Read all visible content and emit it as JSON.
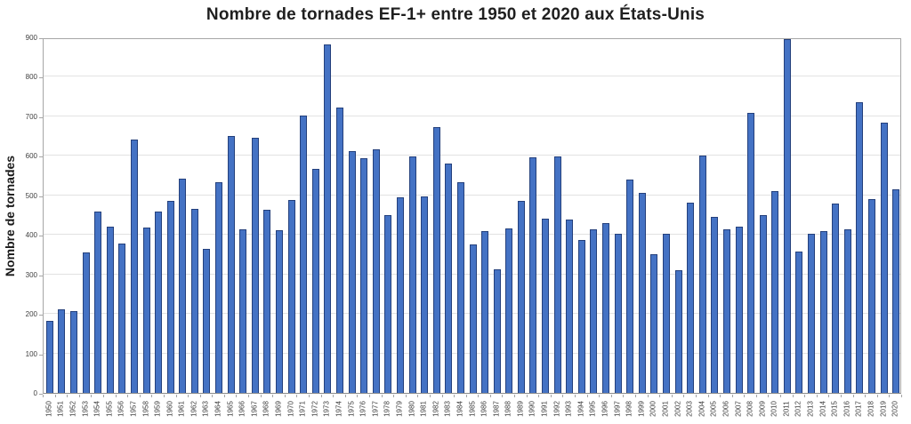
{
  "chart_data": {
    "type": "bar",
    "title": "Nombre de tornades EF-1+ entre 1950 et 2020 aux États-Unis",
    "xlabel": "",
    "ylabel": "Nombre de tornades",
    "ylim": [
      0,
      900
    ],
    "ytick_step": 100,
    "grid": true,
    "legend": "none",
    "bar_color": "#4472c4",
    "bar_border_color": "#24407c",
    "categories": [
      "1950",
      "1951",
      "1952",
      "1953",
      "1954",
      "1955",
      "1956",
      "1957",
      "1958",
      "1959",
      "1960",
      "1961",
      "1962",
      "1963",
      "1964",
      "1965",
      "1966",
      "1967",
      "1968",
      "1969",
      "1970",
      "1971",
      "1972",
      "1973",
      "1974",
      "1975",
      "1976",
      "1977",
      "1978",
      "1979",
      "1980",
      "1981",
      "1982",
      "1983",
      "1984",
      "1985",
      "1986",
      "1987",
      "1988",
      "1989",
      "1990",
      "1991",
      "1992",
      "1993",
      "1994",
      "1995",
      "1996",
      "1997",
      "1998",
      "1999",
      "2000",
      "2001",
      "2002",
      "2003",
      "2004",
      "2005",
      "2006",
      "2007",
      "2008",
      "2009",
      "2010",
      "2011",
      "2012",
      "2013",
      "2014",
      "2015",
      "2016",
      "2017",
      "2018",
      "2019",
      "2020"
    ],
    "values": [
      183,
      211,
      207,
      355,
      460,
      420,
      378,
      641,
      418,
      458,
      486,
      542,
      465,
      365,
      533,
      651,
      415,
      645,
      463,
      411,
      488,
      701,
      566,
      883,
      723,
      611,
      593,
      616,
      450,
      495,
      598,
      497,
      672,
      580,
      533,
      375,
      410,
      313,
      417,
      485,
      596,
      442,
      599,
      438,
      387,
      415,
      429,
      403,
      540,
      506,
      352,
      403,
      310,
      481,
      600,
      446,
      415,
      420,
      708,
      451,
      510,
      896,
      358,
      403,
      409,
      479,
      414,
      735,
      490,
      685,
      516
    ]
  }
}
